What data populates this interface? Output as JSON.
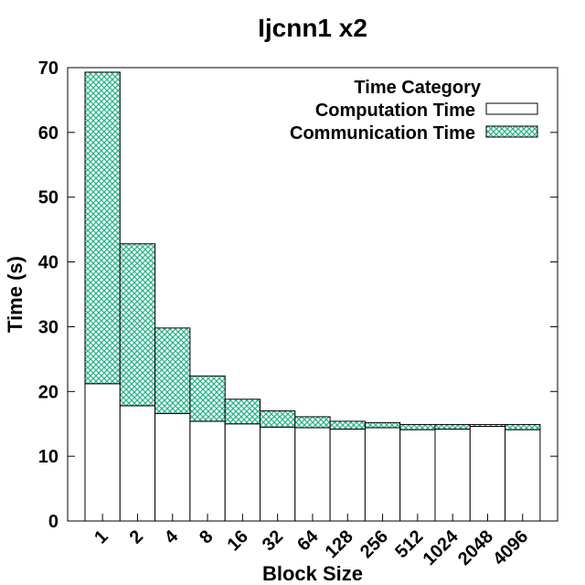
{
  "chart_data": {
    "type": "bar",
    "stacked": true,
    "title": "Ijcnn1 x2",
    "xlabel": "Block Size",
    "ylabel": "Time (s)",
    "ylim": [
      0,
      70
    ],
    "yticks": [
      0,
      10,
      20,
      30,
      40,
      50,
      60,
      70
    ],
    "categories": [
      "1",
      "2",
      "4",
      "8",
      "16",
      "32",
      "64",
      "128",
      "256",
      "512",
      "1024",
      "2048",
      "4096"
    ],
    "legend": {
      "title": "Time Category",
      "placement": "top-right"
    },
    "grid": false,
    "series": [
      {
        "name": "Computation Time",
        "color": "#ffffff",
        "pattern": "none",
        "values": [
          21.2,
          17.8,
          16.6,
          15.4,
          15.0,
          14.5,
          14.4,
          14.2,
          14.4,
          14.1,
          14.2,
          14.6,
          14.1
        ]
      },
      {
        "name": "Communication Time",
        "color": "#2bb38a",
        "pattern": "crosshatch",
        "values": [
          48.1,
          25.0,
          13.2,
          7.0,
          3.8,
          2.5,
          1.7,
          1.2,
          0.8,
          0.8,
          0.7,
          0.3,
          0.8
        ]
      }
    ]
  }
}
